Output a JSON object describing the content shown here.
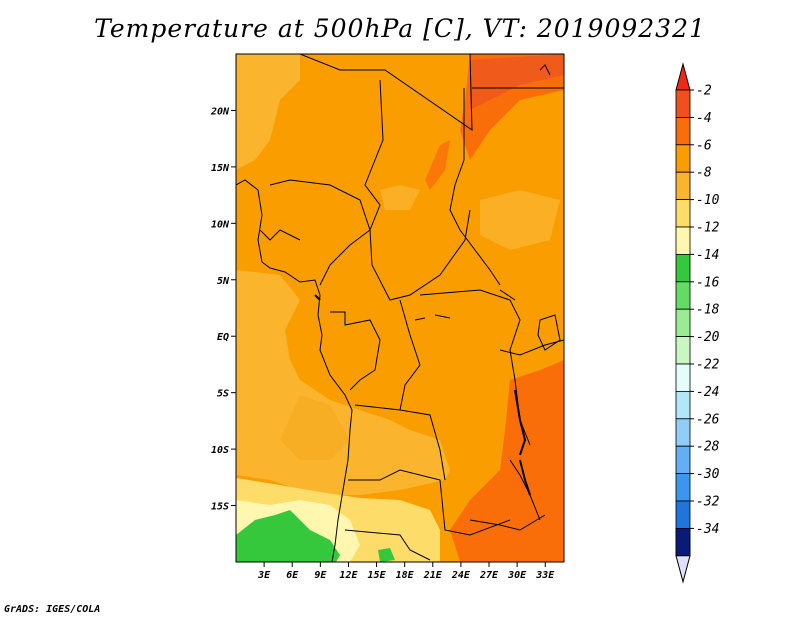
{
  "title": "Temperature at 500hPa [C], VT: 2019092321",
  "credit": "GrADS: IGES/COLA",
  "map": {
    "lon_range": [
      0,
      35
    ],
    "lat_range": [
      -20,
      25
    ],
    "lat_ticks": [
      {
        "value": 20,
        "label": "20N"
      },
      {
        "value": 15,
        "label": "15N"
      },
      {
        "value": 10,
        "label": "10N"
      },
      {
        "value": 5,
        "label": "5N"
      },
      {
        "value": 0,
        "label": "EQ"
      },
      {
        "value": -5,
        "label": "5S"
      },
      {
        "value": -10,
        "label": "10S"
      },
      {
        "value": -15,
        "label": "15S"
      }
    ],
    "lon_ticks": [
      {
        "value": 3,
        "label": "3E"
      },
      {
        "value": 6,
        "label": "6E"
      },
      {
        "value": 9,
        "label": "9E"
      },
      {
        "value": 12,
        "label": "12E"
      },
      {
        "value": 15,
        "label": "15E"
      },
      {
        "value": 18,
        "label": "18E"
      },
      {
        "value": 21,
        "label": "21E"
      },
      {
        "value": 24,
        "label": "24E"
      },
      {
        "value": 27,
        "label": "27E"
      },
      {
        "value": 30,
        "label": "30E"
      },
      {
        "value": 33,
        "label": "33E"
      }
    ]
  },
  "colorbar": {
    "levels": [
      {
        "label": "-2",
        "color": "#f0501e"
      },
      {
        "label": "-4",
        "color": "#fa6e0a"
      },
      {
        "label": "-6",
        "color": "#fa9d00"
      },
      {
        "label": "-8",
        "color": "#fbb42d"
      },
      {
        "label": "-10",
        "color": "#fedc6a"
      },
      {
        "label": "-12",
        "color": "#fff6b0"
      },
      {
        "label": "-14",
        "color": "#35c73c"
      },
      {
        "label": "-16",
        "color": "#63dc63"
      },
      {
        "label": "-18",
        "color": "#98ec94"
      },
      {
        "label": "-20",
        "color": "#c8f7c2"
      },
      {
        "label": "-22",
        "color": "#e2fdfa"
      },
      {
        "label": "-24",
        "color": "#b4e6fa"
      },
      {
        "label": "-26",
        "color": "#91cdf7"
      },
      {
        "label": "-28",
        "color": "#63aff5"
      },
      {
        "label": "-30",
        "color": "#3c96eb"
      },
      {
        "label": "-32",
        "color": "#1f75dc"
      },
      {
        "label": "-34",
        "color": "#1259c8"
      }
    ],
    "bottom_color": "#0e3fa6",
    "end_colors": {
      "top": "#f02814",
      "bottom": "#e0e0f8",
      "deep": "#0a1a78"
    }
  }
}
